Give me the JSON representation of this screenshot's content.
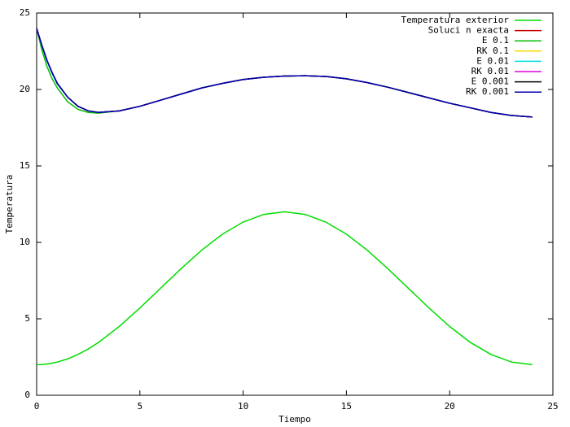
{
  "chart_data": {
    "type": "line",
    "xlabel": "Tiempo",
    "ylabel": "Temperatura",
    "x": [
      0,
      0.25,
      0.5,
      0.75,
      1,
      1.5,
      2,
      2.5,
      3,
      4,
      5,
      6,
      7,
      8,
      9,
      10,
      11,
      12,
      13,
      14,
      15,
      16,
      17,
      18,
      19,
      20,
      21,
      22,
      23,
      24
    ],
    "xlim": [
      0,
      25
    ],
    "xticks": [
      0,
      5,
      10,
      15,
      20,
      25
    ],
    "ylim": [
      0,
      25
    ],
    "yticks": [
      0,
      5,
      10,
      15,
      20,
      25
    ],
    "legend": "top-right",
    "series": [
      {
        "name": "Temperatura exterior",
        "color": "#00dd00",
        "values": [
          2,
          2.01,
          2.04,
          2.1,
          2.17,
          2.38,
          2.67,
          3.03,
          3.46,
          4.5,
          5.71,
          7,
          8.29,
          9.5,
          10.54,
          11.33,
          11.83,
          12,
          11.83,
          11.33,
          10.54,
          9.5,
          8.29,
          7,
          5.71,
          4.5,
          3.46,
          2.67,
          2.17,
          2
        ]
      },
      {
        "name": "Soluci n exacta",
        "color": "#cc0000",
        "values": [
          24,
          22.9,
          21.9,
          21.1,
          20.4,
          19.5,
          18.9,
          18.6,
          18.5,
          18.6,
          18.9,
          19.3,
          19.7,
          20.1,
          20.4,
          20.65,
          20.8,
          20.88,
          20.9,
          20.85,
          20.7,
          20.45,
          20.15,
          19.8,
          19.45,
          19.1,
          18.8,
          18.5,
          18.3,
          18.2
        ]
      },
      {
        "name": "E 0.1",
        "color": "#00c000",
        "values": [
          24,
          22.6,
          21.5,
          20.7,
          20.1,
          19.2,
          18.7,
          18.5,
          18.45,
          18.6,
          18.9,
          19.3,
          19.7,
          20.1,
          20.4,
          20.65,
          20.8,
          20.88,
          20.9,
          20.85,
          20.7,
          20.45,
          20.15,
          19.8,
          19.45,
          19.1,
          18.8,
          18.5,
          18.3,
          18.2
        ]
      },
      {
        "name": "RK 0.1",
        "color": "#ffd700",
        "values": [
          24,
          22.9,
          21.9,
          21.1,
          20.4,
          19.5,
          18.9,
          18.6,
          18.5,
          18.6,
          18.9,
          19.3,
          19.7,
          20.1,
          20.4,
          20.65,
          20.8,
          20.88,
          20.9,
          20.85,
          20.7,
          20.45,
          20.15,
          19.8,
          19.45,
          19.1,
          18.8,
          18.5,
          18.3,
          18.2
        ]
      },
      {
        "name": "E 0.01",
        "color": "#00e0e0",
        "values": [
          24,
          22.85,
          21.85,
          21.05,
          20.35,
          19.5,
          18.9,
          18.6,
          18.5,
          18.6,
          18.9,
          19.3,
          19.7,
          20.1,
          20.4,
          20.65,
          20.8,
          20.88,
          20.9,
          20.85,
          20.7,
          20.45,
          20.15,
          19.8,
          19.45,
          19.1,
          18.8,
          18.5,
          18.3,
          18.2
        ]
      },
      {
        "name": "RK 0.01",
        "color": "#e000e0",
        "values": [
          24,
          22.9,
          21.9,
          21.1,
          20.4,
          19.5,
          18.9,
          18.6,
          18.5,
          18.6,
          18.9,
          19.3,
          19.7,
          20.1,
          20.4,
          20.65,
          20.8,
          20.88,
          20.9,
          20.85,
          20.7,
          20.45,
          20.15,
          19.8,
          19.45,
          19.1,
          18.8,
          18.5,
          18.3,
          18.2
        ]
      },
      {
        "name": "E 0.001",
        "color": "#000000",
        "values": [
          24,
          22.9,
          21.9,
          21.1,
          20.4,
          19.5,
          18.9,
          18.6,
          18.5,
          18.6,
          18.9,
          19.3,
          19.7,
          20.1,
          20.4,
          20.65,
          20.8,
          20.88,
          20.9,
          20.85,
          20.7,
          20.45,
          20.15,
          19.8,
          19.45,
          19.1,
          18.8,
          18.5,
          18.3,
          18.2
        ]
      },
      {
        "name": "RK 0.001",
        "color": "#0000b0",
        "values": [
          24,
          22.9,
          21.9,
          21.1,
          20.4,
          19.5,
          18.9,
          18.6,
          18.5,
          18.6,
          18.9,
          19.3,
          19.7,
          20.1,
          20.4,
          20.65,
          20.8,
          20.88,
          20.9,
          20.85,
          20.7,
          20.45,
          20.15,
          19.8,
          19.45,
          19.1,
          18.8,
          18.5,
          18.3,
          18.2
        ]
      }
    ]
  }
}
